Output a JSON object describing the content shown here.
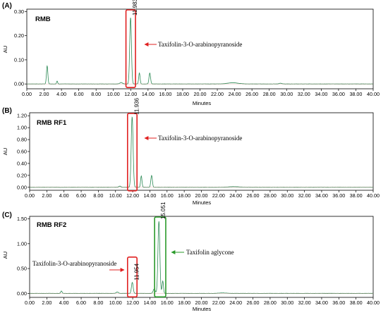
{
  "chart_data": [
    {
      "type": "line",
      "panel_label": "(A)",
      "sample_label": "RMB",
      "xlabel": "Minutes",
      "ylabel": "AU",
      "xlim": [
        0,
        40
      ],
      "ylim": [
        -0.02,
        0.31
      ],
      "x_ticks": [
        "0.00",
        "2.00",
        "4.00",
        "6.00",
        "8.00",
        "10.00",
        "12.00",
        "14.00",
        "16.00",
        "18.00",
        "20.00",
        "22.00",
        "24.00",
        "26.00",
        "28.00",
        "30.00",
        "32.00",
        "34.00",
        "36.00",
        "38.00",
        "40.00"
      ],
      "y_ticks": [
        "0.00",
        "0.10",
        "0.20",
        "0.30"
      ],
      "y_tick_values": [
        0.0,
        0.1,
        0.2,
        0.3
      ],
      "series": [
        {
          "color": "#2e8b57",
          "peaks": [
            {
              "rt": 2.35,
              "height": 0.075,
              "width": 0.08
            },
            {
              "rt": 3.5,
              "height": 0.012,
              "width": 0.06
            },
            {
              "rt": 10.9,
              "height": 0.006,
              "width": 0.15
            },
            {
              "rt": 11.983,
              "height": 0.275,
              "width": 0.1
            },
            {
              "rt": 13.0,
              "height": 0.045,
              "width": 0.08
            },
            {
              "rt": 14.2,
              "height": 0.045,
              "width": 0.09
            },
            {
              "rt": 23.8,
              "height": 0.005,
              "width": 0.6
            },
            {
              "rt": 29.3,
              "height": 0.003,
              "width": 0.15
            }
          ]
        }
      ],
      "peak_labels": [
        {
          "rt": 11.983,
          "text": "11.983"
        }
      ],
      "highlight_boxes": [
        {
          "x0": 11.45,
          "x1": 12.55,
          "color": "#e02020"
        }
      ],
      "annotations": [
        {
          "text": "Taxifolin-3-O-arabinopyranoside",
          "arrow_color": "#e02020"
        }
      ]
    },
    {
      "type": "line",
      "panel_label": "(B)",
      "sample_label": "RMB RF1",
      "xlabel": "Minutes",
      "ylabel": "AU",
      "xlim": [
        0,
        40
      ],
      "ylim": [
        -0.05,
        1.25
      ],
      "x_ticks": [
        "0.00",
        "2.00",
        "4.00",
        "6.00",
        "8.00",
        "10.00",
        "12.00",
        "14.00",
        "16.00",
        "18.00",
        "20.00",
        "22.00",
        "24.00",
        "26.00",
        "28.00",
        "30.00",
        "32.00",
        "34.00",
        "36.00",
        "38.00",
        "40.00"
      ],
      "y_ticks": [
        "0.00",
        "0.20",
        "0.40",
        "0.60",
        "0.80",
        "1.00",
        "1.20"
      ],
      "y_tick_values": [
        0.0,
        0.2,
        0.4,
        0.6,
        0.8,
        1.0,
        1.2
      ],
      "series": [
        {
          "color": "#2e8b57",
          "peaks": [
            {
              "rt": 10.5,
              "height": 0.02,
              "width": 0.12
            },
            {
              "rt": 11.936,
              "height": 1.18,
              "width": 0.11
            },
            {
              "rt": 13.0,
              "height": 0.19,
              "width": 0.08
            },
            {
              "rt": 14.2,
              "height": 0.2,
              "width": 0.09
            },
            {
              "rt": 23.8,
              "height": 0.01,
              "width": 0.6
            }
          ]
        }
      ],
      "peak_labels": [
        {
          "rt": 11.936,
          "text": "11.936"
        }
      ],
      "highlight_boxes": [
        {
          "x0": 11.4,
          "x1": 12.5,
          "color": "#e02020"
        }
      ],
      "annotations": [
        {
          "text": "Taxifolin-3-O-arabinopyranoside",
          "arrow_color": "#e02020"
        }
      ]
    },
    {
      "type": "line",
      "panel_label": "(C)",
      "sample_label": "RMB RF2",
      "xlabel": "Minutes",
      "ylabel": "AU",
      "xlim": [
        0,
        40
      ],
      "ylim": [
        -0.08,
        1.55
      ],
      "x_ticks": [
        "0.00",
        "2.00",
        "4.00",
        "6.00",
        "8.00",
        "10.00",
        "12.00",
        "14.00",
        "16.00",
        "18.00",
        "20.00",
        "22.00",
        "24.00",
        "26.00",
        "28.00",
        "30.00",
        "32.00",
        "34.00",
        "36.00",
        "38.00",
        "40.00"
      ],
      "y_ticks": [
        "0.00",
        "0.50",
        "1.00",
        "1.50"
      ],
      "y_tick_values": [
        0.0,
        0.5,
        1.0,
        1.5
      ],
      "series": [
        {
          "color": "#2e8b57",
          "peaks": [
            {
              "rt": 3.7,
              "height": 0.05,
              "width": 0.08
            },
            {
              "rt": 10.2,
              "height": 0.03,
              "width": 0.12
            },
            {
              "rt": 11.954,
              "height": 0.22,
              "width": 0.1
            },
            {
              "rt": 14.5,
              "height": 0.09,
              "width": 0.12
            },
            {
              "rt": 15.051,
              "height": 1.45,
              "width": 0.11
            },
            {
              "rt": 15.5,
              "height": 0.25,
              "width": 0.08
            },
            {
              "rt": 22.5,
              "height": 0.01,
              "width": 0.4
            }
          ]
        }
      ],
      "peak_labels": [
        {
          "rt": 11.954,
          "text": "11.954"
        },
        {
          "rt": 15.051,
          "text": "15.051"
        }
      ],
      "highlight_boxes": [
        {
          "x0": 11.4,
          "x1": 12.5,
          "color": "#e02020"
        },
        {
          "x0": 14.55,
          "x1": 15.85,
          "color": "#2a9a2a"
        }
      ],
      "annotations": [
        {
          "text": "Taxifolin-3-O-arabinopyranoside",
          "arrow_color": "#e02020"
        },
        {
          "text": "Taxifolin aglycone",
          "arrow_color": "#2a9a2a"
        }
      ]
    }
  ]
}
